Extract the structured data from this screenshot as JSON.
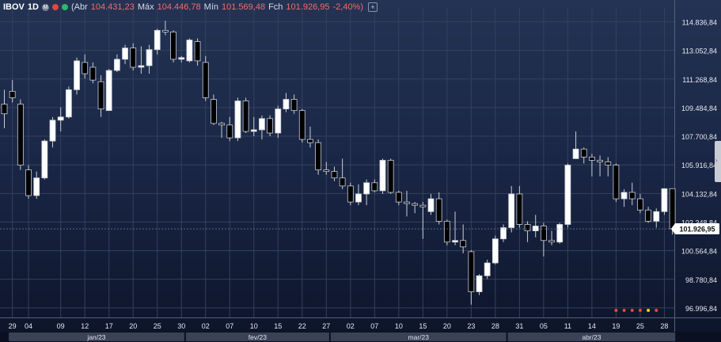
{
  "header": {
    "symbol": "IBOV",
    "timeframe": "1D",
    "badge": "M",
    "open_label": "Abr",
    "open_value": "104.431,23",
    "high_label": "Máx",
    "high_value": "104.446,78",
    "low_label": "Mín",
    "low_value": "101.569,48",
    "close_label": "Fch",
    "close_value": "101.926,95",
    "change": "-2,40%",
    "add_label": "+"
  },
  "price_tag": "101.926,95",
  "colors": {
    "up": "#ffffff",
    "down": "#000000",
    "wick": "#c9cdd6",
    "grid": "#34405e",
    "axis_text": "#e6e8ee",
    "header_value": "#f36b6b"
  },
  "chart_data": {
    "type": "candlestick",
    "ylim": [
      96400,
      115700
    ],
    "y_ticks": [
      {
        "value": 114836.84,
        "label": "114.836,84"
      },
      {
        "value": 113052.84,
        "label": "113.052,84"
      },
      {
        "value": 111268.84,
        "label": "111.268,84"
      },
      {
        "value": 109484.84,
        "label": "109.484,84"
      },
      {
        "value": 107700.84,
        "label": "107.700,84"
      },
      {
        "value": 105916.84,
        "label": "105.916,84"
      },
      {
        "value": 104132.84,
        "label": "104.132,84"
      },
      {
        "value": 102348.84,
        "label": "102.348,84"
      },
      {
        "value": 100564.84,
        "label": "100.564,84"
      },
      {
        "value": 98780.84,
        "label": "98.780,84"
      },
      {
        "value": 96996.84,
        "label": "96.996,84"
      }
    ],
    "x_ticks": [
      {
        "index": 1,
        "label": "29"
      },
      {
        "index": 3,
        "label": "04"
      },
      {
        "index": 7,
        "label": "09"
      },
      {
        "index": 10,
        "label": "12"
      },
      {
        "index": 13,
        "label": "17"
      },
      {
        "index": 16,
        "label": "20"
      },
      {
        "index": 19,
        "label": "25"
      },
      {
        "index": 22,
        "label": "30"
      },
      {
        "index": 25,
        "label": "02"
      },
      {
        "index": 28,
        "label": "07"
      },
      {
        "index": 31,
        "label": "10"
      },
      {
        "index": 34,
        "label": "15"
      },
      {
        "index": 37,
        "label": "22"
      },
      {
        "index": 40,
        "label": "27"
      },
      {
        "index": 43,
        "label": "02"
      },
      {
        "index": 46,
        "label": "07"
      },
      {
        "index": 49,
        "label": "10"
      },
      {
        "index": 52,
        "label": "15"
      },
      {
        "index": 55,
        "label": "20"
      },
      {
        "index": 58,
        "label": "23"
      },
      {
        "index": 61,
        "label": "28"
      },
      {
        "index": 64,
        "label": "31"
      },
      {
        "index": 67,
        "label": "05"
      },
      {
        "index": 70,
        "label": "11"
      },
      {
        "index": 73,
        "label": "14"
      },
      {
        "index": 76,
        "label": "19"
      },
      {
        "index": 79,
        "label": "25"
      },
      {
        "index": 82,
        "label": "28"
      }
    ],
    "months": [
      {
        "label": "jan/23",
        "start": 1,
        "end": 22
      },
      {
        "label": "fev/23",
        "start": 23,
        "end": 40
      },
      {
        "label": "mar/23",
        "start": 41,
        "end": 62
      },
      {
        "label": "abr/23",
        "start": 63,
        "end": 83
      }
    ],
    "candles": [
      {
        "o": 109700,
        "h": 110600,
        "l": 108200,
        "c": 109100
      },
      {
        "o": 110500,
        "h": 111200,
        "l": 109800,
        "c": 110100
      },
      {
        "o": 109700,
        "h": 110000,
        "l": 105600,
        "c": 105900
      },
      {
        "o": 105600,
        "h": 105900,
        "l": 103800,
        "c": 104000
      },
      {
        "o": 104000,
        "h": 105500,
        "l": 103800,
        "c": 105100
      },
      {
        "o": 105100,
        "h": 107500,
        "l": 105000,
        "c": 107400
      },
      {
        "o": 107400,
        "h": 108900,
        "l": 107000,
        "c": 108700
      },
      {
        "o": 108700,
        "h": 109500,
        "l": 108000,
        "c": 108900
      },
      {
        "o": 108900,
        "h": 110800,
        "l": 108800,
        "c": 110600
      },
      {
        "o": 110600,
        "h": 112600,
        "l": 110300,
        "c": 112400
      },
      {
        "o": 112300,
        "h": 112800,
        "l": 111300,
        "c": 111600
      },
      {
        "o": 112000,
        "h": 112300,
        "l": 111000,
        "c": 111200
      },
      {
        "o": 111100,
        "h": 111500,
        "l": 108900,
        "c": 109400
      },
      {
        "o": 109300,
        "h": 111900,
        "l": 109300,
        "c": 111800
      },
      {
        "o": 111800,
        "h": 112800,
        "l": 111700,
        "c": 112500
      },
      {
        "o": 112500,
        "h": 113400,
        "l": 112200,
        "c": 113200
      },
      {
        "o": 113200,
        "h": 113500,
        "l": 111800,
        "c": 112000
      },
      {
        "o": 112000,
        "h": 113300,
        "l": 111600,
        "c": 112100
      },
      {
        "o": 112100,
        "h": 113400,
        "l": 111600,
        "c": 113100
      },
      {
        "o": 113100,
        "h": 114400,
        "l": 112800,
        "c": 114300
      },
      {
        "o": 114300,
        "h": 114900,
        "l": 114000,
        "c": 114200
      },
      {
        "o": 114200,
        "h": 114300,
        "l": 112300,
        "c": 112500
      },
      {
        "o": 112500,
        "h": 112700,
        "l": 112300,
        "c": 112600
      },
      {
        "o": 112400,
        "h": 113800,
        "l": 112300,
        "c": 113700
      },
      {
        "o": 113600,
        "h": 113800,
        "l": 112100,
        "c": 112400
      },
      {
        "o": 112300,
        "h": 112700,
        "l": 109900,
        "c": 110100
      },
      {
        "o": 110000,
        "h": 110300,
        "l": 108400,
        "c": 108500
      },
      {
        "o": 108500,
        "h": 108600,
        "l": 107600,
        "c": 108400
      },
      {
        "o": 108400,
        "h": 108900,
        "l": 107400,
        "c": 107600
      },
      {
        "o": 107600,
        "h": 110100,
        "l": 107400,
        "c": 109900
      },
      {
        "o": 109900,
        "h": 110100,
        "l": 107900,
        "c": 108000
      },
      {
        "o": 108000,
        "h": 108900,
        "l": 107700,
        "c": 108100
      },
      {
        "o": 108100,
        "h": 109000,
        "l": 107500,
        "c": 108800
      },
      {
        "o": 108800,
        "h": 109000,
        "l": 107700,
        "c": 107900
      },
      {
        "o": 107900,
        "h": 109600,
        "l": 107600,
        "c": 109400
      },
      {
        "o": 109400,
        "h": 110400,
        "l": 109200,
        "c": 110000
      },
      {
        "o": 110000,
        "h": 110300,
        "l": 109100,
        "c": 109300
      },
      {
        "o": 109300,
        "h": 109400,
        "l": 107300,
        "c": 107500
      },
      {
        "o": 107500,
        "h": 108300,
        "l": 107000,
        "c": 107300
      },
      {
        "o": 107300,
        "h": 107500,
        "l": 105300,
        "c": 105600
      },
      {
        "o": 105600,
        "h": 106100,
        "l": 105300,
        "c": 105500
      },
      {
        "o": 105500,
        "h": 105800,
        "l": 104900,
        "c": 105100
      },
      {
        "o": 105100,
        "h": 106300,
        "l": 104400,
        "c": 104600
      },
      {
        "o": 104600,
        "h": 104800,
        "l": 103400,
        "c": 103600
      },
      {
        "o": 103600,
        "h": 104700,
        "l": 103400,
        "c": 104100
      },
      {
        "o": 104100,
        "h": 105000,
        "l": 103400,
        "c": 104800
      },
      {
        "o": 104800,
        "h": 105000,
        "l": 104200,
        "c": 104300
      },
      {
        "o": 104300,
        "h": 106300,
        "l": 104100,
        "c": 106200
      },
      {
        "o": 106200,
        "h": 106300,
        "l": 104100,
        "c": 104200
      },
      {
        "o": 104200,
        "h": 104300,
        "l": 103400,
        "c": 103600
      },
      {
        "o": 103600,
        "h": 104300,
        "l": 102700,
        "c": 103500
      },
      {
        "o": 103500,
        "h": 103600,
        "l": 102900,
        "c": 103400
      },
      {
        "o": 103400,
        "h": 103600,
        "l": 101300,
        "c": 103300
      },
      {
        "o": 103000,
        "h": 104100,
        "l": 102800,
        "c": 103800
      },
      {
        "o": 103800,
        "h": 104200,
        "l": 102200,
        "c": 102400
      },
      {
        "o": 102400,
        "h": 102500,
        "l": 100900,
        "c": 101100
      },
      {
        "o": 101100,
        "h": 103000,
        "l": 100900,
        "c": 101200
      },
      {
        "o": 101200,
        "h": 102200,
        "l": 100400,
        "c": 100800
      },
      {
        "o": 100500,
        "h": 100600,
        "l": 97200,
        "c": 98000
      },
      {
        "o": 98000,
        "h": 99100,
        "l": 97800,
        "c": 99000
      },
      {
        "o": 99000,
        "h": 100000,
        "l": 98800,
        "c": 99800
      },
      {
        "o": 99800,
        "h": 101500,
        "l": 99700,
        "c": 101300
      },
      {
        "o": 101300,
        "h": 102200,
        "l": 101100,
        "c": 102000
      },
      {
        "o": 102000,
        "h": 104600,
        "l": 101700,
        "c": 104100
      },
      {
        "o": 104100,
        "h": 104600,
        "l": 102000,
        "c": 102200
      },
      {
        "o": 102200,
        "h": 102400,
        "l": 101100,
        "c": 101800
      },
      {
        "o": 101800,
        "h": 102800,
        "l": 101400,
        "c": 102100
      },
      {
        "o": 102100,
        "h": 102300,
        "l": 100200,
        "c": 101200
      },
      {
        "o": 101200,
        "h": 101800,
        "l": 100900,
        "c": 101100
      },
      {
        "o": 101100,
        "h": 102300,
        "l": 101000,
        "c": 102200
      },
      {
        "o": 102200,
        "h": 106000,
        "l": 102000,
        "c": 105900
      },
      {
        "o": 106300,
        "h": 108000,
        "l": 106300,
        "c": 106900
      },
      {
        "o": 106900,
        "h": 107000,
        "l": 106000,
        "c": 106400
      },
      {
        "o": 106400,
        "h": 106600,
        "l": 105200,
        "c": 106200
      },
      {
        "o": 106200,
        "h": 106500,
        "l": 105200,
        "c": 106100
      },
      {
        "o": 106100,
        "h": 106400,
        "l": 105200,
        "c": 105900
      },
      {
        "o": 105900,
        "h": 106000,
        "l": 103600,
        "c": 103800
      },
      {
        "o": 103800,
        "h": 104400,
        "l": 103300,
        "c": 104200
      },
      {
        "o": 104200,
        "h": 104800,
        "l": 103400,
        "c": 103800
      },
      {
        "o": 103800,
        "h": 104100,
        "l": 102900,
        "c": 103100
      },
      {
        "o": 103100,
        "h": 103300,
        "l": 102300,
        "c": 102400
      },
      {
        "o": 102400,
        "h": 103200,
        "l": 102000,
        "c": 103000
      },
      {
        "o": 103000,
        "h": 104450,
        "l": 102800,
        "c": 104430
      },
      {
        "o": 104431,
        "h": 104447,
        "l": 101569,
        "c": 101927
      }
    ],
    "markers": [
      {
        "index": 76,
        "color": "#e8463c"
      },
      {
        "index": 77,
        "color": "#e8463c"
      },
      {
        "index": 78,
        "color": "#e8463c"
      },
      {
        "index": 79,
        "color": "#e8463c"
      },
      {
        "index": 80,
        "color": "#f2d11b"
      },
      {
        "index": 81,
        "color": "#e8463c"
      }
    ]
  }
}
